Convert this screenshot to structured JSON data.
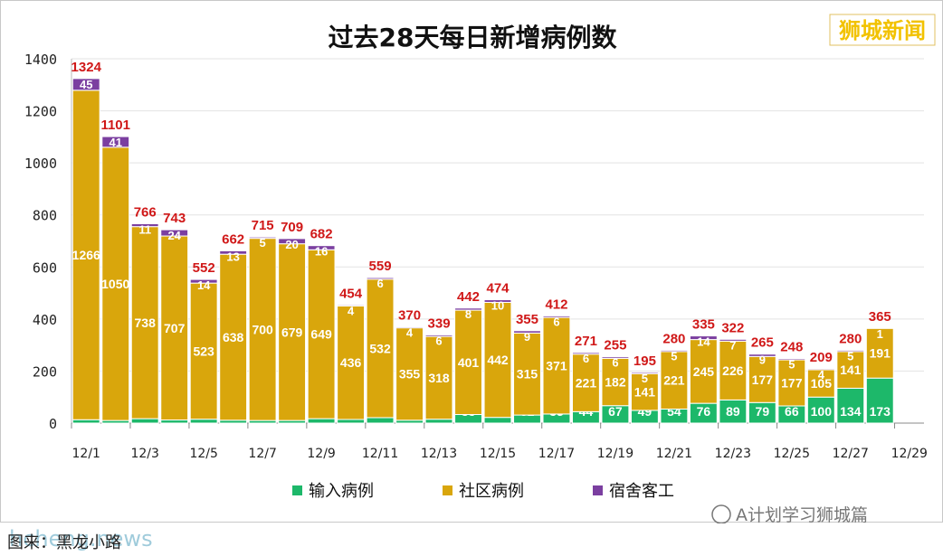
{
  "brand": {
    "label": "狮城新闻",
    "color": "#f2c200"
  },
  "account": {
    "label": "A计划学习狮城篇"
  },
  "caption": {
    "text": "图来：黑龙小路"
  },
  "watermark": {
    "text": "hcheng.news"
  },
  "colors": {
    "import": "#1db86a",
    "community": "#d9a60c",
    "dorm": "#7b3fa0",
    "total_label": "#d01818"
  },
  "chart_data": {
    "type": "bar",
    "stacked": true,
    "title": "过去28天每日新增病例数",
    "ylim": [
      0,
      1400
    ],
    "yticks": [
      0,
      200,
      400,
      600,
      800,
      1000,
      1200,
      1400
    ],
    "legend_position": "bottom",
    "x_tick_labels": [
      "12/1",
      "12/3",
      "12/5",
      "12/7",
      "12/9",
      "12/11",
      "12/13",
      "12/15",
      "12/17",
      "12/19",
      "12/21",
      "12/23",
      "12/25",
      "12/27",
      "12/29"
    ],
    "totals": [
      1324,
      1101,
      766,
      743,
      552,
      662,
      715,
      709,
      682,
      454,
      559,
      370,
      339,
      442,
      474,
      355,
      412,
      271,
      255,
      195,
      280,
      335,
      322,
      265,
      248,
      209,
      280,
      365
    ],
    "series": [
      {
        "name": "输入病例",
        "values": [
          13,
          10,
          17,
          12,
          15,
          11,
          10,
          10,
          17,
          14,
          21,
          11,
          15,
          33,
          22,
          31,
          35,
          44,
          67,
          49,
          54,
          76,
          89,
          79,
          66,
          100,
          134,
          173
        ]
      },
      {
        "name": "社区病例",
        "values": [
          1266,
          1050,
          738,
          707,
          523,
          638,
          700,
          679,
          649,
          436,
          532,
          355,
          318,
          401,
          442,
          315,
          371,
          221,
          182,
          141,
          221,
          245,
          226,
          177,
          177,
          105,
          141,
          191
        ]
      },
      {
        "name": "宿舍客工",
        "values": [
          45,
          41,
          11,
          24,
          14,
          13,
          5,
          20,
          16,
          4,
          6,
          4,
          6,
          8,
          10,
          9,
          6,
          6,
          6,
          5,
          5,
          14,
          7,
          9,
          5,
          4,
          5,
          1
        ]
      }
    ]
  }
}
